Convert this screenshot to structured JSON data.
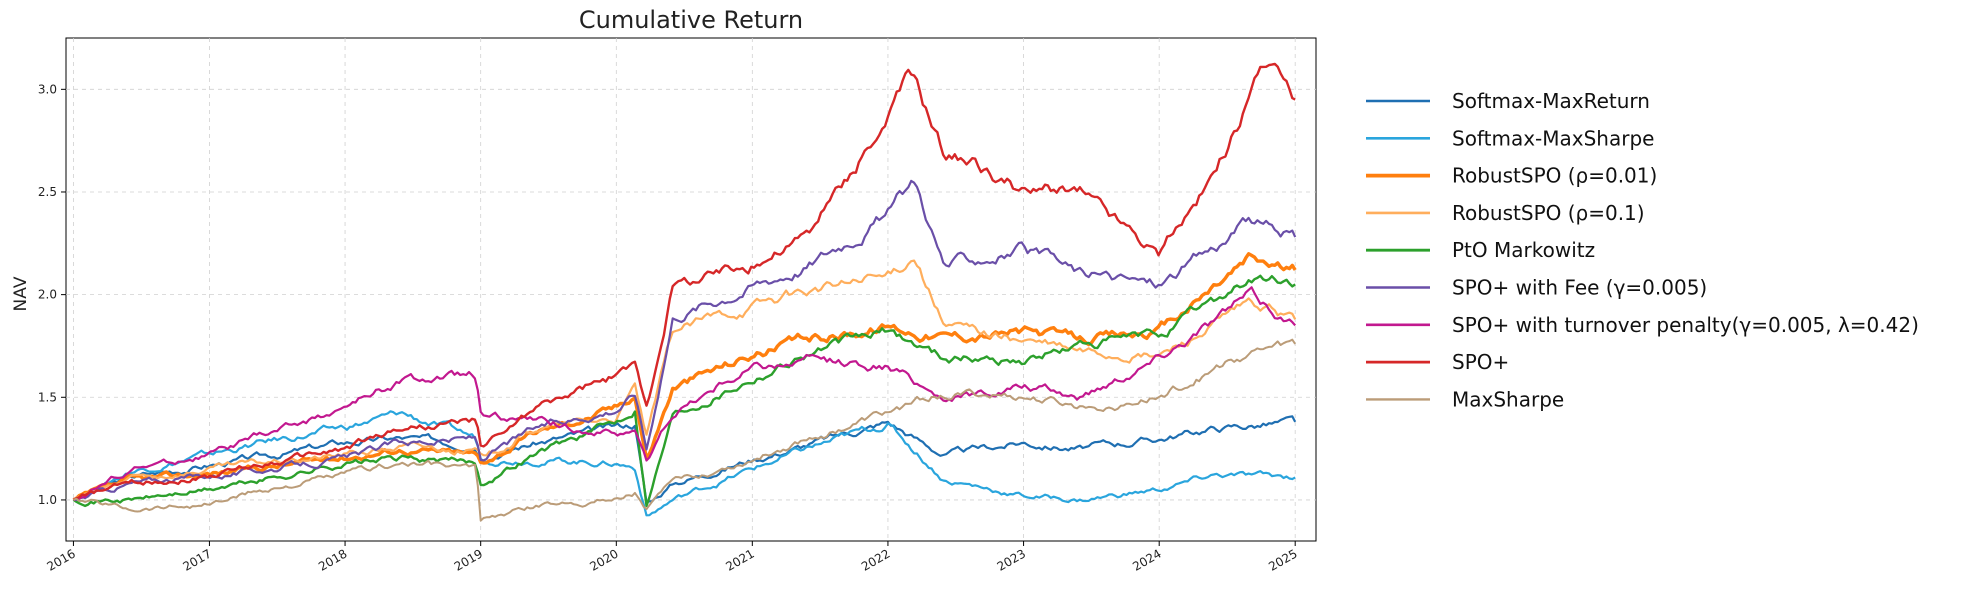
{
  "chart_data": {
    "type": "line",
    "title": "Cumulative Return",
    "xlabel": "",
    "ylabel": "NAV",
    "xlim": [
      "2016-01-01",
      "2025-01-01"
    ],
    "ylim": [
      0.8,
      3.25
    ],
    "x_ticks": [
      "2016",
      "2017",
      "2018",
      "2019",
      "2020",
      "2021",
      "2022",
      "2023",
      "2024",
      "2025"
    ],
    "y_ticks": [
      1.0,
      1.5,
      2.0,
      2.5,
      3.0
    ],
    "y_tick_labels": [
      "1.0",
      "1.5",
      "2.0",
      "2.5",
      "3.0"
    ],
    "grid": true,
    "legend_position": "outside-right",
    "series": [
      {
        "name": "Softmax-MaxReturn",
        "color": "#1f6fb2",
        "width": 2.2,
        "points": [
          [
            "2016-01-01",
            1.0
          ],
          [
            "2016-06-01",
            1.11
          ],
          [
            "2017-01-01",
            1.17
          ],
          [
            "2017-06-01",
            1.21
          ],
          [
            "2018-01-01",
            1.28
          ],
          [
            "2018-06-01",
            1.3
          ],
          [
            "2018-12-20",
            1.27
          ],
          [
            "2019-01-01",
            1.22
          ],
          [
            "2019-06-01",
            1.28
          ],
          [
            "2020-01-01",
            1.35
          ],
          [
            "2020-02-20",
            1.37
          ],
          [
            "2020-03-23",
            0.98
          ],
          [
            "2020-06-01",
            1.08
          ],
          [
            "2021-01-01",
            1.2
          ],
          [
            "2021-06-01",
            1.27
          ],
          [
            "2022-01-01",
            1.38
          ],
          [
            "2022-06-01",
            1.22
          ],
          [
            "2023-01-01",
            1.28
          ],
          [
            "2023-06-01",
            1.25
          ],
          [
            "2024-01-01",
            1.3
          ],
          [
            "2024-06-01",
            1.35
          ],
          [
            "2025-01-01",
            1.38
          ]
        ]
      },
      {
        "name": "Softmax-MaxSharpe",
        "color": "#2aa5dd",
        "width": 2.2,
        "points": [
          [
            "2016-01-01",
            1.0
          ],
          [
            "2016-06-01",
            1.14
          ],
          [
            "2017-01-01",
            1.22
          ],
          [
            "2017-06-01",
            1.28
          ],
          [
            "2018-01-01",
            1.35
          ],
          [
            "2018-06-01",
            1.42
          ],
          [
            "2018-12-20",
            1.3
          ],
          [
            "2019-01-01",
            1.2
          ],
          [
            "2019-06-01",
            1.2
          ],
          [
            "2020-01-01",
            1.18
          ],
          [
            "2020-02-20",
            1.16
          ],
          [
            "2020-03-23",
            0.92
          ],
          [
            "2020-06-01",
            1.0
          ],
          [
            "2021-01-01",
            1.15
          ],
          [
            "2021-06-01",
            1.25
          ],
          [
            "2022-01-01",
            1.37
          ],
          [
            "2022-06-01",
            1.1
          ],
          [
            "2023-01-01",
            1.02
          ],
          [
            "2023-06-01",
            1.0
          ],
          [
            "2024-01-01",
            1.05
          ],
          [
            "2024-06-01",
            1.12
          ],
          [
            "2025-01-01",
            1.11
          ]
        ]
      },
      {
        "name": "RobustSPO (ρ=0.01)",
        "color": "#ff7f0e",
        "width": 3.4,
        "points": [
          [
            "2016-01-01",
            1.0
          ],
          [
            "2016-06-01",
            1.09
          ],
          [
            "2017-01-01",
            1.13
          ],
          [
            "2017-06-01",
            1.16
          ],
          [
            "2018-01-01",
            1.21
          ],
          [
            "2018-06-01",
            1.25
          ],
          [
            "2018-12-20",
            1.22
          ],
          [
            "2019-01-01",
            1.18
          ],
          [
            "2019-06-01",
            1.33
          ],
          [
            "2020-01-01",
            1.45
          ],
          [
            "2020-02-20",
            1.52
          ],
          [
            "2020-03-23",
            1.2
          ],
          [
            "2020-06-01",
            1.55
          ],
          [
            "2021-01-01",
            1.71
          ],
          [
            "2021-06-01",
            1.78
          ],
          [
            "2022-01-01",
            1.85
          ],
          [
            "2022-06-01",
            1.8
          ],
          [
            "2023-01-01",
            1.82
          ],
          [
            "2023-06-01",
            1.78
          ],
          [
            "2024-01-01",
            1.82
          ],
          [
            "2024-09-01",
            2.18
          ],
          [
            "2025-01-01",
            2.12
          ]
        ]
      },
      {
        "name": "RobustSPO (ρ=0.1)",
        "color": "#ffae5c",
        "width": 2.2,
        "points": [
          [
            "2016-01-01",
            1.0
          ],
          [
            "2016-06-01",
            1.1
          ],
          [
            "2017-01-01",
            1.15
          ],
          [
            "2017-06-01",
            1.18
          ],
          [
            "2018-01-01",
            1.22
          ],
          [
            "2018-06-01",
            1.26
          ],
          [
            "2018-12-20",
            1.24
          ],
          [
            "2019-01-01",
            1.2
          ],
          [
            "2019-06-01",
            1.35
          ],
          [
            "2020-01-01",
            1.4
          ],
          [
            "2020-02-20",
            1.55
          ],
          [
            "2020-03-23",
            1.3
          ],
          [
            "2020-06-01",
            1.82
          ],
          [
            "2021-01-01",
            1.95
          ],
          [
            "2021-06-01",
            2.02
          ],
          [
            "2022-01-01",
            2.08
          ],
          [
            "2022-03-15",
            2.2
          ],
          [
            "2022-06-01",
            1.85
          ],
          [
            "2023-01-01",
            1.78
          ],
          [
            "2023-06-01",
            1.72
          ],
          [
            "2024-01-01",
            1.7
          ],
          [
            "2024-09-01",
            1.95
          ],
          [
            "2025-01-01",
            1.88
          ]
        ]
      },
      {
        "name": "PtO Markowitz",
        "color": "#2ca02c",
        "width": 2.4,
        "points": [
          [
            "2016-01-01",
            1.0
          ],
          [
            "2016-06-01",
            1.0
          ],
          [
            "2017-01-01",
            1.05
          ],
          [
            "2017-06-01",
            1.1
          ],
          [
            "2018-01-01",
            1.18
          ],
          [
            "2018-06-01",
            1.2
          ],
          [
            "2018-12-20",
            1.18
          ],
          [
            "2019-01-01",
            1.08
          ],
          [
            "2019-06-01",
            1.23
          ],
          [
            "2020-01-01",
            1.38
          ],
          [
            "2020-02-20",
            1.45
          ],
          [
            "2020-03-23",
            0.98
          ],
          [
            "2020-06-01",
            1.42
          ],
          [
            "2021-01-01",
            1.6
          ],
          [
            "2021-06-01",
            1.72
          ],
          [
            "2022-01-01",
            1.82
          ],
          [
            "2022-06-01",
            1.7
          ],
          [
            "2023-01-01",
            1.68
          ],
          [
            "2023-06-01",
            1.75
          ],
          [
            "2024-01-01",
            1.8
          ],
          [
            "2024-09-01",
            2.08
          ],
          [
            "2025-01-01",
            2.05
          ]
        ]
      },
      {
        "name": "SPO+ with Fee (γ=0.005)",
        "color": "#6a4fa8",
        "width": 2.2,
        "points": [
          [
            "2016-01-01",
            1.0
          ],
          [
            "2016-06-01",
            1.08
          ],
          [
            "2017-01-01",
            1.12
          ],
          [
            "2017-06-01",
            1.15
          ],
          [
            "2018-01-01",
            1.2
          ],
          [
            "2018-06-01",
            1.28
          ],
          [
            "2018-12-20",
            1.3
          ],
          [
            "2019-01-01",
            1.2
          ],
          [
            "2019-06-01",
            1.35
          ],
          [
            "2020-01-01",
            1.45
          ],
          [
            "2020-02-20",
            1.52
          ],
          [
            "2020-03-23",
            1.25
          ],
          [
            "2020-06-01",
            1.9
          ],
          [
            "2021-01-01",
            2.05
          ],
          [
            "2021-06-01",
            2.15
          ],
          [
            "2022-01-01",
            2.4
          ],
          [
            "2022-03-15",
            2.55
          ],
          [
            "2022-06-01",
            2.15
          ],
          [
            "2023-01-01",
            2.22
          ],
          [
            "2023-06-01",
            2.1
          ],
          [
            "2024-01-01",
            2.05
          ],
          [
            "2024-09-01",
            2.35
          ],
          [
            "2025-01-01",
            2.28
          ]
        ]
      },
      {
        "name": "SPO+ with turnover penalty(γ=0.005, λ=0.42)",
        "color": "#c2188f",
        "width": 2.2,
        "points": [
          [
            "2016-01-01",
            1.0
          ],
          [
            "2016-06-01",
            1.15
          ],
          [
            "2017-01-01",
            1.22
          ],
          [
            "2017-06-01",
            1.32
          ],
          [
            "2018-01-01",
            1.45
          ],
          [
            "2018-06-01",
            1.58
          ],
          [
            "2018-12-20",
            1.6
          ],
          [
            "2019-01-01",
            1.42
          ],
          [
            "2019-06-01",
            1.38
          ],
          [
            "2020-01-01",
            1.32
          ],
          [
            "2020-02-20",
            1.35
          ],
          [
            "2020-03-23",
            1.18
          ],
          [
            "2020-06-01",
            1.42
          ],
          [
            "2021-01-01",
            1.65
          ],
          [
            "2021-06-01",
            1.68
          ],
          [
            "2022-01-01",
            1.65
          ],
          [
            "2022-06-01",
            1.5
          ],
          [
            "2023-01-01",
            1.55
          ],
          [
            "2023-06-01",
            1.5
          ],
          [
            "2024-01-01",
            1.7
          ],
          [
            "2024-09-01",
            2.0
          ],
          [
            "2025-01-01",
            1.85
          ]
        ]
      },
      {
        "name": "SPO+",
        "color": "#d62728",
        "width": 2.4,
        "points": [
          [
            "2016-01-01",
            1.0
          ],
          [
            "2016-06-01",
            1.08
          ],
          [
            "2017-01-01",
            1.12
          ],
          [
            "2017-06-01",
            1.18
          ],
          [
            "2018-01-01",
            1.25
          ],
          [
            "2018-06-01",
            1.35
          ],
          [
            "2018-12-20",
            1.38
          ],
          [
            "2019-01-01",
            1.25
          ],
          [
            "2019-06-01",
            1.45
          ],
          [
            "2020-01-01",
            1.6
          ],
          [
            "2020-02-20",
            1.65
          ],
          [
            "2020-03-23",
            1.45
          ],
          [
            "2020-06-01",
            2.05
          ],
          [
            "2021-01-01",
            2.15
          ],
          [
            "2021-06-01",
            2.3
          ],
          [
            "2022-01-01",
            2.85
          ],
          [
            "2022-03-01",
            3.07
          ],
          [
            "2022-06-01",
            2.7
          ],
          [
            "2023-01-01",
            2.5
          ],
          [
            "2023-06-01",
            2.5
          ],
          [
            "2024-01-01",
            2.2
          ],
          [
            "2024-06-01",
            2.6
          ],
          [
            "2024-10-15",
            3.12
          ],
          [
            "2025-01-01",
            2.95
          ]
        ]
      },
      {
        "name": "MaxSharpe",
        "color": "#bb9c78",
        "width": 2.0,
        "points": [
          [
            "2016-01-01",
            1.0
          ],
          [
            "2016-06-01",
            0.96
          ],
          [
            "2017-01-01",
            0.98
          ],
          [
            "2017-06-01",
            1.05
          ],
          [
            "2018-01-01",
            1.12
          ],
          [
            "2018-06-01",
            1.18
          ],
          [
            "2018-12-20",
            1.15
          ],
          [
            "2019-01-01",
            0.9
          ],
          [
            "2019-06-01",
            0.97
          ],
          [
            "2020-01-01",
            1.01
          ],
          [
            "2020-02-20",
            1.04
          ],
          [
            "2020-03-23",
            0.96
          ],
          [
            "2020-06-01",
            1.08
          ],
          [
            "2021-01-01",
            1.2
          ],
          [
            "2021-06-01",
            1.3
          ],
          [
            "2022-01-01",
            1.42
          ],
          [
            "2022-06-01",
            1.52
          ],
          [
            "2023-01-01",
            1.5
          ],
          [
            "2023-06-01",
            1.45
          ],
          [
            "2024-01-01",
            1.5
          ],
          [
            "2024-09-01",
            1.72
          ],
          [
            "2025-01-01",
            1.76
          ]
        ]
      }
    ]
  }
}
